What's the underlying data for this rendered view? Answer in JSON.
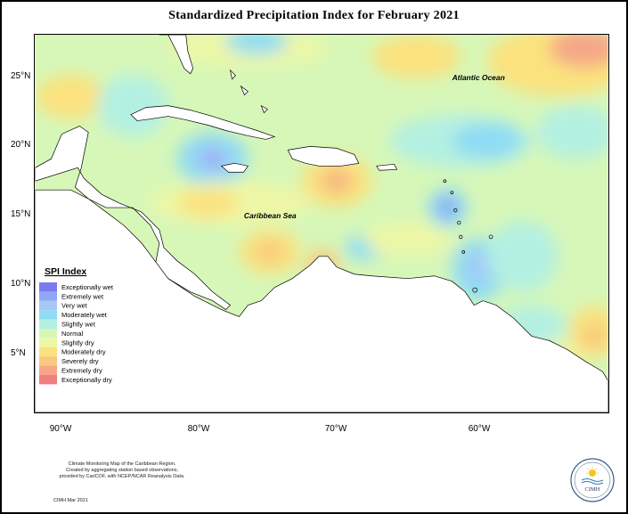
{
  "title": "Standardized Precipitation Index for February 2021",
  "labels": {
    "ocean": "Atlantic Ocean",
    "sea": "Caribbean Sea"
  },
  "axes": {
    "latitudes": [
      "25°N",
      "20°N",
      "15°N",
      "10°N",
      "5°N"
    ],
    "longitudes": [
      "90°W",
      "80°W",
      "70°W",
      "60°W"
    ]
  },
  "legend": {
    "title": "SPI Index",
    "items": [
      {
        "label": "Exceptionally wet",
        "color": "#7b7bf0"
      },
      {
        "label": "Extremely wet",
        "color": "#8fa8f4"
      },
      {
        "label": "Very wet",
        "color": "#a6c8f7"
      },
      {
        "label": "Moderately wet",
        "color": "#8fdcf4"
      },
      {
        "label": "Slightly wet",
        "color": "#b4f0e2"
      },
      {
        "label": "Normal",
        "color": "#d6f7b8"
      },
      {
        "label": "Slightly dry",
        "color": "#eef7a6"
      },
      {
        "label": "Moderately dry",
        "color": "#fbe27e"
      },
      {
        "label": "Severely dry",
        "color": "#f9c87e"
      },
      {
        "label": "Extremely dry",
        "color": "#f5a787"
      },
      {
        "label": "Exceptionally dry",
        "color": "#f07f7f"
      }
    ]
  },
  "footer": {
    "note_lines": [
      "Climate Monitoring Map of the Caribbean Region.",
      "Created by aggregating station based observations,",
      "provided by CariCOF, with NCEP/NCAR Reanalysis Data."
    ],
    "credit": "CIMH Mar 2021"
  },
  "logo": {
    "text": "CIMH",
    "icon": "cimh-logo-icon"
  }
}
